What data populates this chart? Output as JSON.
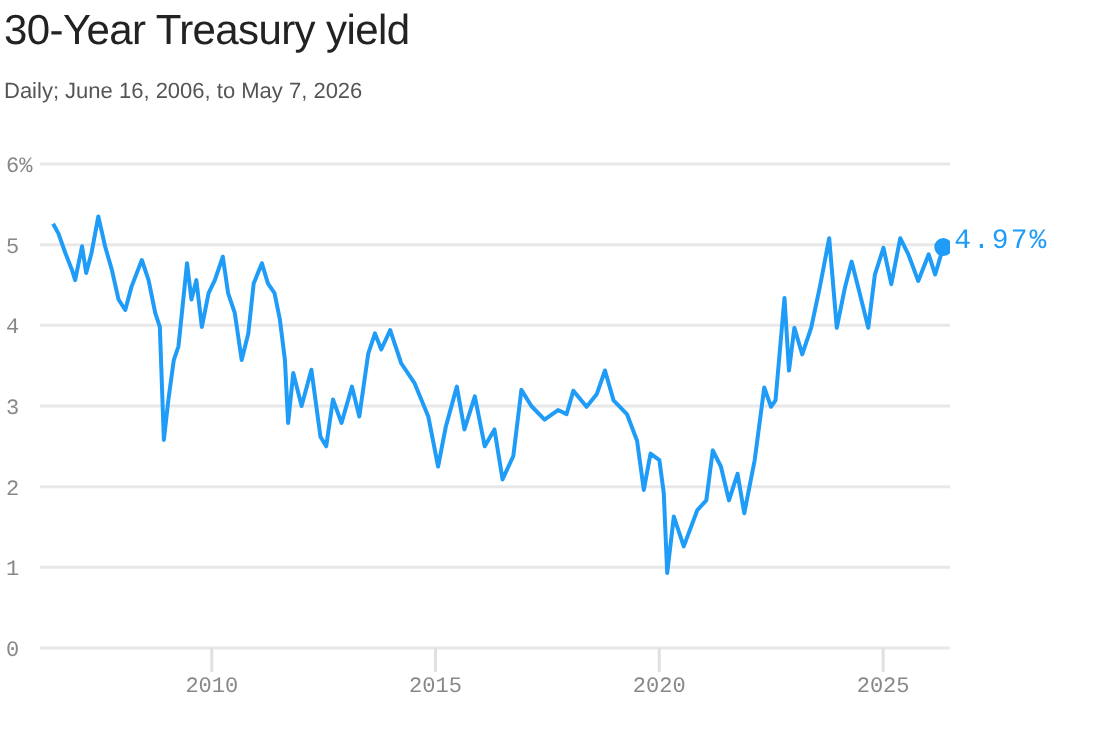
{
  "chart_data": {
    "type": "line",
    "title": "30-Year Treasury yield",
    "subtitle": "Daily; June 16, 2006, to May 7, 2026",
    "xlim": [
      "2006-03-01",
      "2026-07-01"
    ],
    "xticks": [
      "2010",
      "2015",
      "2020",
      "2025"
    ],
    "ylim": [
      0,
      6
    ],
    "yticks": [
      0,
      1,
      2,
      3,
      4,
      5,
      {
        "value": 6,
        "label": "6%"
      }
    ],
    "grid": "y",
    "legend": false,
    "line_style": "solid",
    "series": [
      {
        "color": "#1f9cf7",
        "marker": "none",
        "x": [
          "2006-06-16",
          "2006-07-29",
          "2006-09-23",
          "2006-11-16",
          "2006-12-13",
          "2007-02-07",
          "2007-03-13",
          "2007-04-26",
          "2007-06-20",
          "2007-08-14",
          "2007-10-08",
          "2007-12-02",
          "2008-01-26",
          "2008-03-17",
          "2008-06-09",
          "2008-08-03",
          "2008-09-27",
          "2008-11-03",
          "2008-12-06",
          "2009-01-12",
          "2009-02-25",
          "2009-04-04",
          "2009-06-13",
          "2009-07-19",
          "2009-08-28",
          "2009-10-12",
          "2009-12-06",
          "2010-01-26",
          "2010-04-01",
          "2010-05-14",
          "2010-07-08",
          "2010-09-02",
          "2010-10-26",
          "2010-12-09",
          "2011-02-14",
          "2011-04-04",
          "2011-05-28",
          "2011-07-11",
          "2011-08-21",
          "2011-09-16",
          "2011-10-28",
          "2012-01-04",
          "2012-03-24",
          "2012-06-06",
          "2012-07-23",
          "2012-09-16",
          "2012-11-25",
          "2013-02-18",
          "2013-04-19",
          "2013-07-01",
          "2013-08-25",
          "2013-10-15",
          "2013-12-27",
          "2014-03-27",
          "2014-07-15",
          "2014-11-03",
          "2015-01-22",
          "2015-03-27",
          "2015-06-24",
          "2015-08-25",
          "2015-11-18",
          "2016-02-07",
          "2016-04-26",
          "2016-07-01",
          "2016-09-27",
          "2016-12-02",
          "2017-02-21",
          "2017-06-09",
          "2017-09-27",
          "2017-12-06",
          "2018-01-30",
          "2018-05-18",
          "2018-08-10",
          "2018-10-15",
          "2018-12-24",
          "2019-04-12",
          "2019-07-04",
          "2019-08-28",
          "2019-10-22",
          "2020-01-02",
          "2020-02-07",
          "2020-03-06",
          "2020-04-29",
          "2020-07-19",
          "2020-11-07",
          "2021-01-19",
          "2021-03-13",
          "2021-05-18",
          "2021-07-23",
          "2021-10-01",
          "2021-11-25",
          "2022-02-18",
          "2022-05-07",
          "2022-07-01",
          "2022-08-07",
          "2022-10-19",
          "2022-11-25",
          "2023-01-08",
          "2023-03-13",
          "2023-05-25",
          "2023-08-03",
          "2023-10-19",
          "2023-12-20",
          "2024-02-25",
          "2024-04-19",
          "2024-06-27",
          "2024-09-02",
          "2024-10-26",
          "2025-01-04",
          "2025-03-09",
          "2025-05-21",
          "2025-07-26",
          "2025-10-15",
          "2026-01-08",
          "2026-03-02",
          "2026-05-07"
        ],
        "values": [
          5.26,
          5.14,
          4.9,
          4.69,
          4.56,
          4.98,
          4.65,
          4.9,
          5.35,
          4.98,
          4.69,
          4.32,
          4.19,
          4.48,
          4.81,
          4.56,
          4.15,
          3.98,
          2.58,
          3.08,
          3.57,
          3.74,
          4.77,
          4.32,
          4.56,
          3.98,
          4.4,
          4.56,
          4.85,
          4.4,
          4.15,
          3.57,
          3.9,
          4.52,
          4.77,
          4.52,
          4.4,
          4.07,
          3.57,
          2.79,
          3.41,
          3.0,
          3.45,
          2.62,
          2.5,
          3.08,
          2.79,
          3.24,
          2.87,
          3.65,
          3.9,
          3.7,
          3.94,
          3.53,
          3.28,
          2.87,
          2.25,
          2.75,
          3.24,
          2.71,
          3.12,
          2.5,
          2.71,
          2.09,
          2.38,
          3.2,
          3.0,
          2.83,
          2.95,
          2.9,
          3.19,
          2.99,
          3.15,
          3.44,
          3.07,
          2.9,
          2.57,
          1.96,
          2.41,
          2.33,
          1.92,
          0.93,
          1.63,
          1.26,
          1.71,
          1.83,
          2.45,
          2.25,
          1.83,
          2.16,
          1.67,
          2.33,
          3.23,
          2.99,
          3.07,
          4.34,
          3.44,
          3.97,
          3.64,
          3.97,
          4.47,
          5.08,
          3.97,
          4.47,
          4.79,
          4.38,
          3.97,
          4.63,
          4.96,
          4.51,
          5.08,
          4.88,
          4.55,
          4.88,
          4.63,
          4.97
        ]
      },
      {
        "type": "scatter",
        "marker": "circle",
        "color": "#1f9cf7",
        "x": [
          "2026-05-07"
        ],
        "values": [
          4.97
        ],
        "value_labels": [
          "4.97%"
        ]
      }
    ]
  }
}
